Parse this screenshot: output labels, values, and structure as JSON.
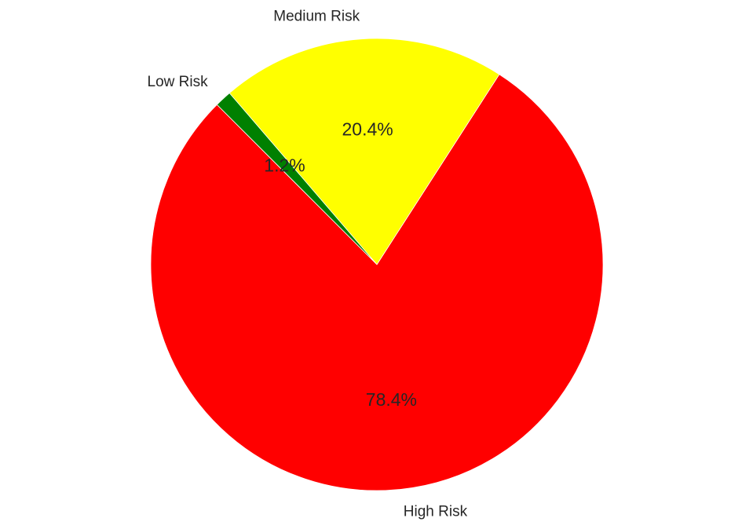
{
  "chart_data": {
    "type": "pie",
    "categories": [
      "High Risk",
      "Medium Risk",
      "Low Risk"
    ],
    "values": [
      78.4,
      20.4,
      1.2
    ],
    "labels": [
      "78.4%",
      "20.4%",
      "1.2%"
    ],
    "colors": [
      "#ff0000",
      "#ffff00",
      "#008000"
    ],
    "start_angle_deg": 135,
    "direction": "counterclockwise",
    "legend": "none"
  }
}
